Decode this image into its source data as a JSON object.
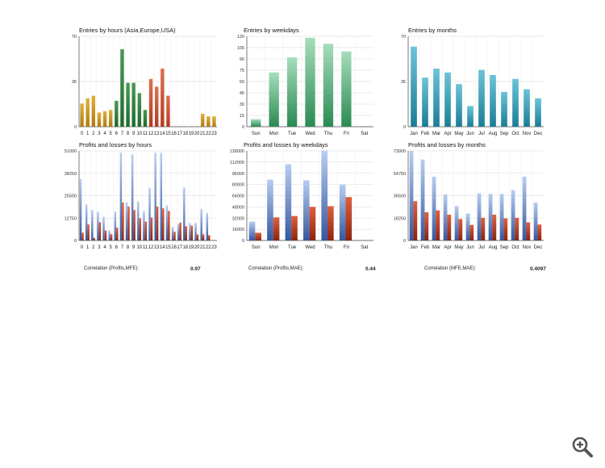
{
  "colors": {
    "gold_top": "#e0b040",
    "gold_bottom": "#b07a10",
    "green_dark_top": "#4a9a52",
    "green_dark_bottom": "#1e6a2c",
    "red_top": "#e07050",
    "red_bottom": "#b33a20",
    "green_light_top": "#a6ddbc",
    "green_light_bottom": "#2a8a52",
    "teal_top": "#6cc4d8",
    "teal_bottom": "#1a7d96",
    "blue_top": "#b8cdf0",
    "blue_bottom": "#3457a0",
    "rust_top": "#e06040",
    "rust_bottom": "#8a2410",
    "grid": "#d8d8d8",
    "axis": "#444444"
  },
  "zoom": {
    "icon": "zoom-in-icon"
  },
  "chart_data": [
    {
      "id": "entries-hours",
      "type": "bar",
      "title": "Entries by hours (Asia,Europe,USA)",
      "categories": [
        "0",
        "1",
        "2",
        "3",
        "4",
        "5",
        "6",
        "7",
        "8",
        "9",
        "10",
        "11",
        "12",
        "13",
        "14",
        "15",
        "16",
        "17",
        "18",
        "19",
        "20",
        "21",
        "22",
        "23"
      ],
      "values": [
        18,
        22,
        24,
        11,
        12,
        13,
        20,
        60,
        34,
        34,
        26,
        13,
        37,
        31,
        45,
        24,
        0,
        0,
        0,
        0,
        0,
        10,
        8,
        8
      ],
      "ylim": [
        0,
        70
      ],
      "yticks": [
        "0",
        "35",
        "70"
      ],
      "grid": true
    },
    {
      "id": "entries-weekdays",
      "type": "bar",
      "title": "Entries by weekdays",
      "categories": [
        "Sun",
        "Mon",
        "Tue",
        "Wed",
        "Thu",
        "Fri",
        "Sat"
      ],
      "values": [
        10,
        72,
        92,
        118,
        110,
        100,
        0
      ],
      "ylim": [
        0,
        120
      ],
      "yticks": [
        "0",
        "15",
        "30",
        "45",
        "60",
        "75",
        "90",
        "105",
        "120"
      ],
      "grid": true
    },
    {
      "id": "entries-months",
      "type": "bar",
      "title": "Entries by months",
      "categories": [
        "Jan",
        "Feb",
        "Mar",
        "Apr",
        "May",
        "Jun",
        "Jul",
        "Aug",
        "Sep",
        "Oct",
        "Nov",
        "Dec"
      ],
      "values": [
        62,
        38,
        45,
        42,
        33,
        16,
        44,
        40,
        27,
        37,
        29,
        22
      ],
      "ylim": [
        0,
        70
      ],
      "yticks": [
        "0",
        "35",
        "70"
      ],
      "grid": true
    },
    {
      "id": "pl-hours",
      "type": "bar",
      "title": "Profits and losses by hours",
      "categories": [
        "0",
        "1",
        "2",
        "3",
        "4",
        "5",
        "6",
        "7",
        "8",
        "9",
        "10",
        "11",
        "12",
        "13",
        "14",
        "15",
        "16",
        "17",
        "18",
        "19",
        "20",
        "21",
        "22",
        "23"
      ],
      "series": [
        {
          "name": "Profits",
          "values": [
            35000,
            20500,
            17300,
            16500,
            13500,
            5800,
            16500,
            50000,
            21800,
            49000,
            22200,
            16700,
            30000,
            50000,
            50000,
            20000,
            7700,
            9400,
            30200,
            10000,
            10000,
            18000,
            15600,
            0
          ]
        },
        {
          "name": "Losses",
          "values": [
            4500,
            9100,
            1500,
            10400,
            5700,
            3600,
            7300,
            21600,
            19300,
            17400,
            12600,
            10700,
            13100,
            19300,
            18300,
            16800,
            5000,
            10200,
            8100,
            8500,
            3500,
            3500,
            3000,
            0
          ]
        }
      ],
      "ylim": [
        0,
        51000
      ],
      "yticks": [
        "0",
        "12750",
        "25500",
        "38250",
        "51000"
      ],
      "grid": true
    },
    {
      "id": "pl-weekdays",
      "type": "bar",
      "title": "Profits and losses by weekdays",
      "categories": [
        "Sun",
        "Mon",
        "Tue",
        "Wed",
        "Thu",
        "Fri",
        "Sat"
      ],
      "series": [
        {
          "name": "Profits",
          "values": [
            27000,
            87000,
            109000,
            86000,
            128000,
            80000,
            0
          ]
        },
        {
          "name": "Losses",
          "values": [
            11000,
            33000,
            35000,
            48000,
            49000,
            62000,
            0
          ]
        }
      ],
      "ylim": [
        0,
        128000
      ],
      "yticks": [
        "0",
        "16000",
        "32000",
        "48000",
        "64000",
        "80000",
        "96000",
        "112000",
        "128000"
      ],
      "grid": true
    },
    {
      "id": "pl-months",
      "type": "bar",
      "title": "Profits and losses by months",
      "categories": [
        "Jan",
        "Feb",
        "Mar",
        "Apr",
        "May",
        "Jun",
        "Jul",
        "Aug",
        "Sep",
        "Oct",
        "Nov",
        "Dec"
      ],
      "series": [
        {
          "name": "Profits",
          "values": [
            73000,
            66000,
            52000,
            37500,
            28000,
            22000,
            38500,
            38000,
            38000,
            41000,
            52000,
            31000
          ]
        },
        {
          "name": "Losses",
          "values": [
            32000,
            23000,
            24500,
            21000,
            17500,
            12700,
            18500,
            21000,
            18000,
            18500,
            14700,
            13000
          ]
        }
      ],
      "ylim": [
        0,
        73000
      ],
      "yticks": [
        "0",
        "18250",
        "36500",
        "54750",
        "73000"
      ],
      "grid": true
    }
  ],
  "correlations": [
    {
      "label": "Correlation (Profits,MFE):",
      "value": "0.97"
    },
    {
      "label": "Correlation (Profits,MAE):",
      "value": "0.44"
    },
    {
      "label": "Correlation (MFE,MAE):",
      "value": "0.4097"
    }
  ]
}
